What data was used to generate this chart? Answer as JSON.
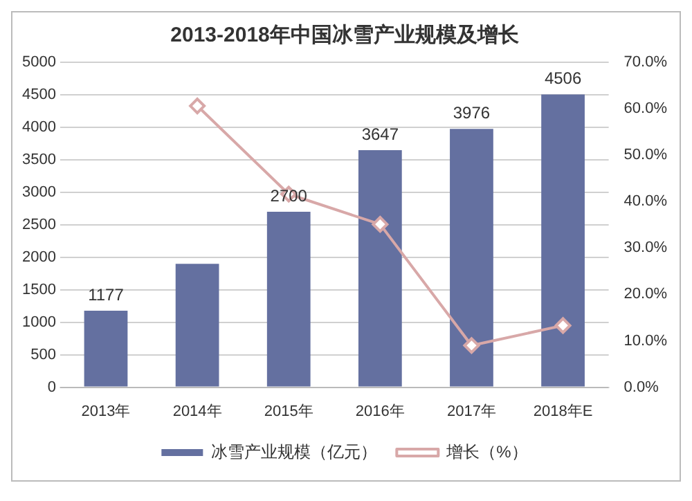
{
  "chart_data": {
    "type": "bar",
    "title": "2013-2018年中国冰雪产业规模及增长",
    "categories": [
      "2013年",
      "2014年",
      "2015年",
      "2016年",
      "2017年",
      "2018年E"
    ],
    "series": [
      {
        "name": "冰雪产业规模（亿元）",
        "color": "#6470a0",
        "values": [
          1177,
          1900,
          2700,
          3647,
          3976,
          4506
        ],
        "value_labels": [
          "1177",
          null,
          "2700",
          "3647",
          "3976",
          "4506"
        ]
      },
      {
        "name": "增长（%）",
        "type": "line",
        "axis": "y2",
        "color": "#d8a8a8",
        "marker": "diamond",
        "values": [
          null,
          60.6,
          41.6,
          35.1,
          9.0,
          13.3
        ]
      }
    ],
    "ylim": [
      0,
      5000
    ],
    "yticks": [
      0,
      500,
      1000,
      1500,
      2000,
      2500,
      3000,
      3500,
      4000,
      4500,
      5000
    ],
    "y2lim": [
      0,
      70
    ],
    "y2ticks": [
      {
        "value": 0,
        "label": "0.0%"
      },
      {
        "value": 10,
        "label": "10.0%"
      },
      {
        "value": 20,
        "label": "20.0%"
      },
      {
        "value": 30,
        "label": "30.0%"
      },
      {
        "value": 40,
        "label": "40.0%"
      },
      {
        "value": 50,
        "label": "50.0%"
      },
      {
        "value": 60,
        "label": "60.0%"
      },
      {
        "value": 70,
        "label": "70.0%"
      }
    ],
    "grid": "y",
    "legend": "bottom"
  }
}
